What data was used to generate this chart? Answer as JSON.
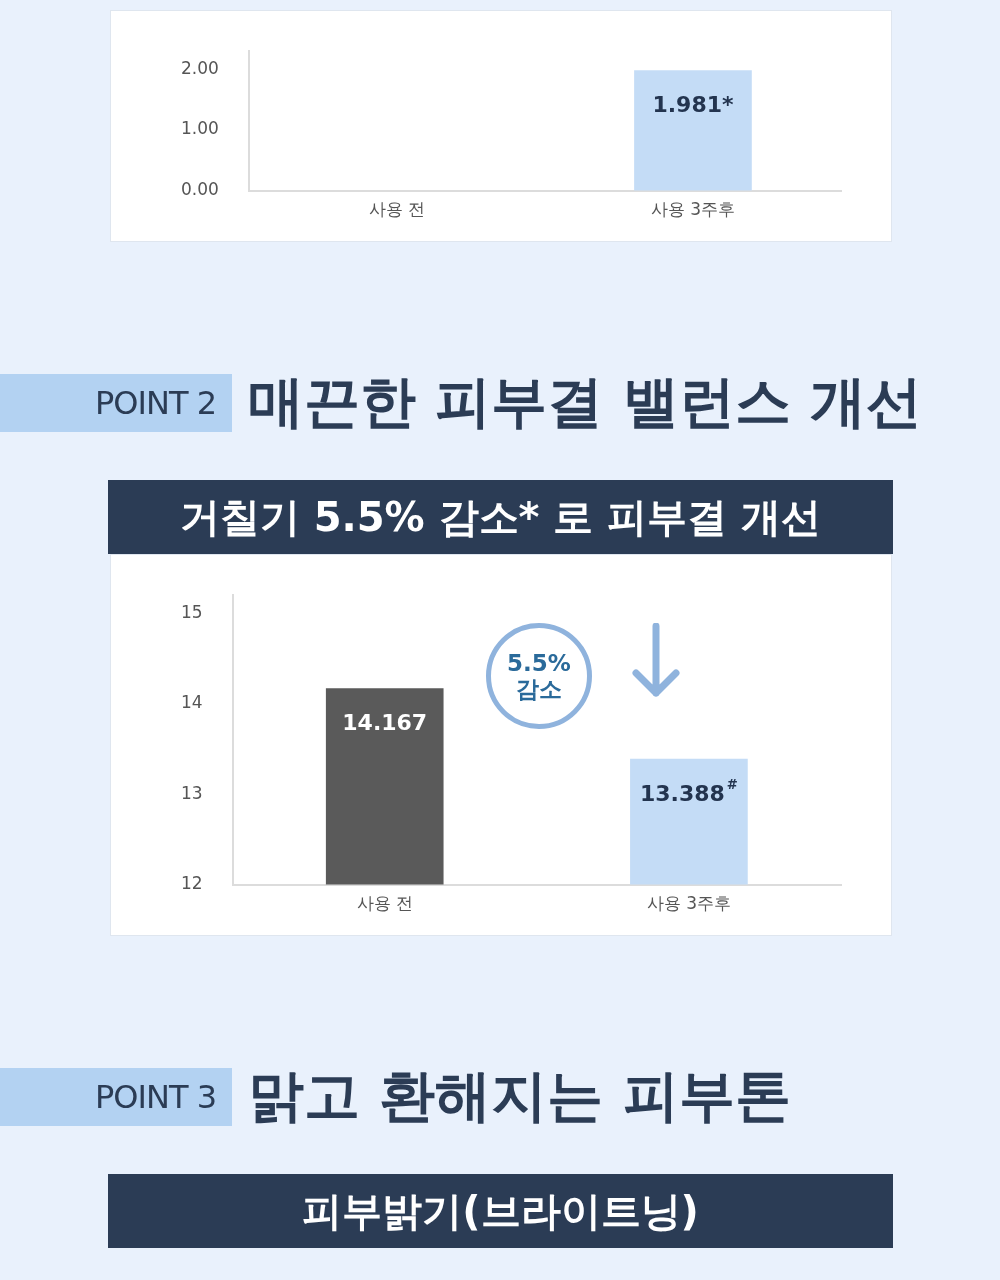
{
  "chart_data": [
    {
      "type": "bar",
      "categories": [
        "사용 전",
        "사용 3주후"
      ],
      "values": [
        null,
        1.981
      ],
      "colors": [
        "#9a9a9a",
        "#c4dcf6"
      ],
      "value_labels": [
        null,
        "1.981*"
      ],
      "ylim": [
        0,
        2.3
      ],
      "yticks": [
        {
          "value": 0,
          "label": "0.00"
        },
        {
          "value": 1,
          "label": "1.00"
        },
        {
          "value": 2,
          "label": "2.00"
        }
      ],
      "grid": false
    },
    {
      "type": "bar",
      "subtitle": "매끈한 피부결 밸런스 개선",
      "title": "거칠기 5.5% 감소* 로 피부결 개선",
      "categories": [
        "사용 전",
        "사용 3주후"
      ],
      "values": [
        14.167,
        13.388
      ],
      "colors": [
        "#5a5a5a",
        "#c4dcf6"
      ],
      "value_labels": [
        "14.167",
        "13.388$^{#}$"
      ],
      "ylim": [
        12,
        15.2
      ],
      "yticks": [
        12,
        13,
        14,
        15
      ],
      "annotations": [
        "POINT 2",
        "5.5% 감소"
      ],
      "grid": false
    },
    {
      "type": "other",
      "subtitle": "맑고 환해지는 피부톤",
      "title": "피부밝기(브라이트닝)",
      "annotations": [
        "POINT 3"
      ]
    }
  ]
}
